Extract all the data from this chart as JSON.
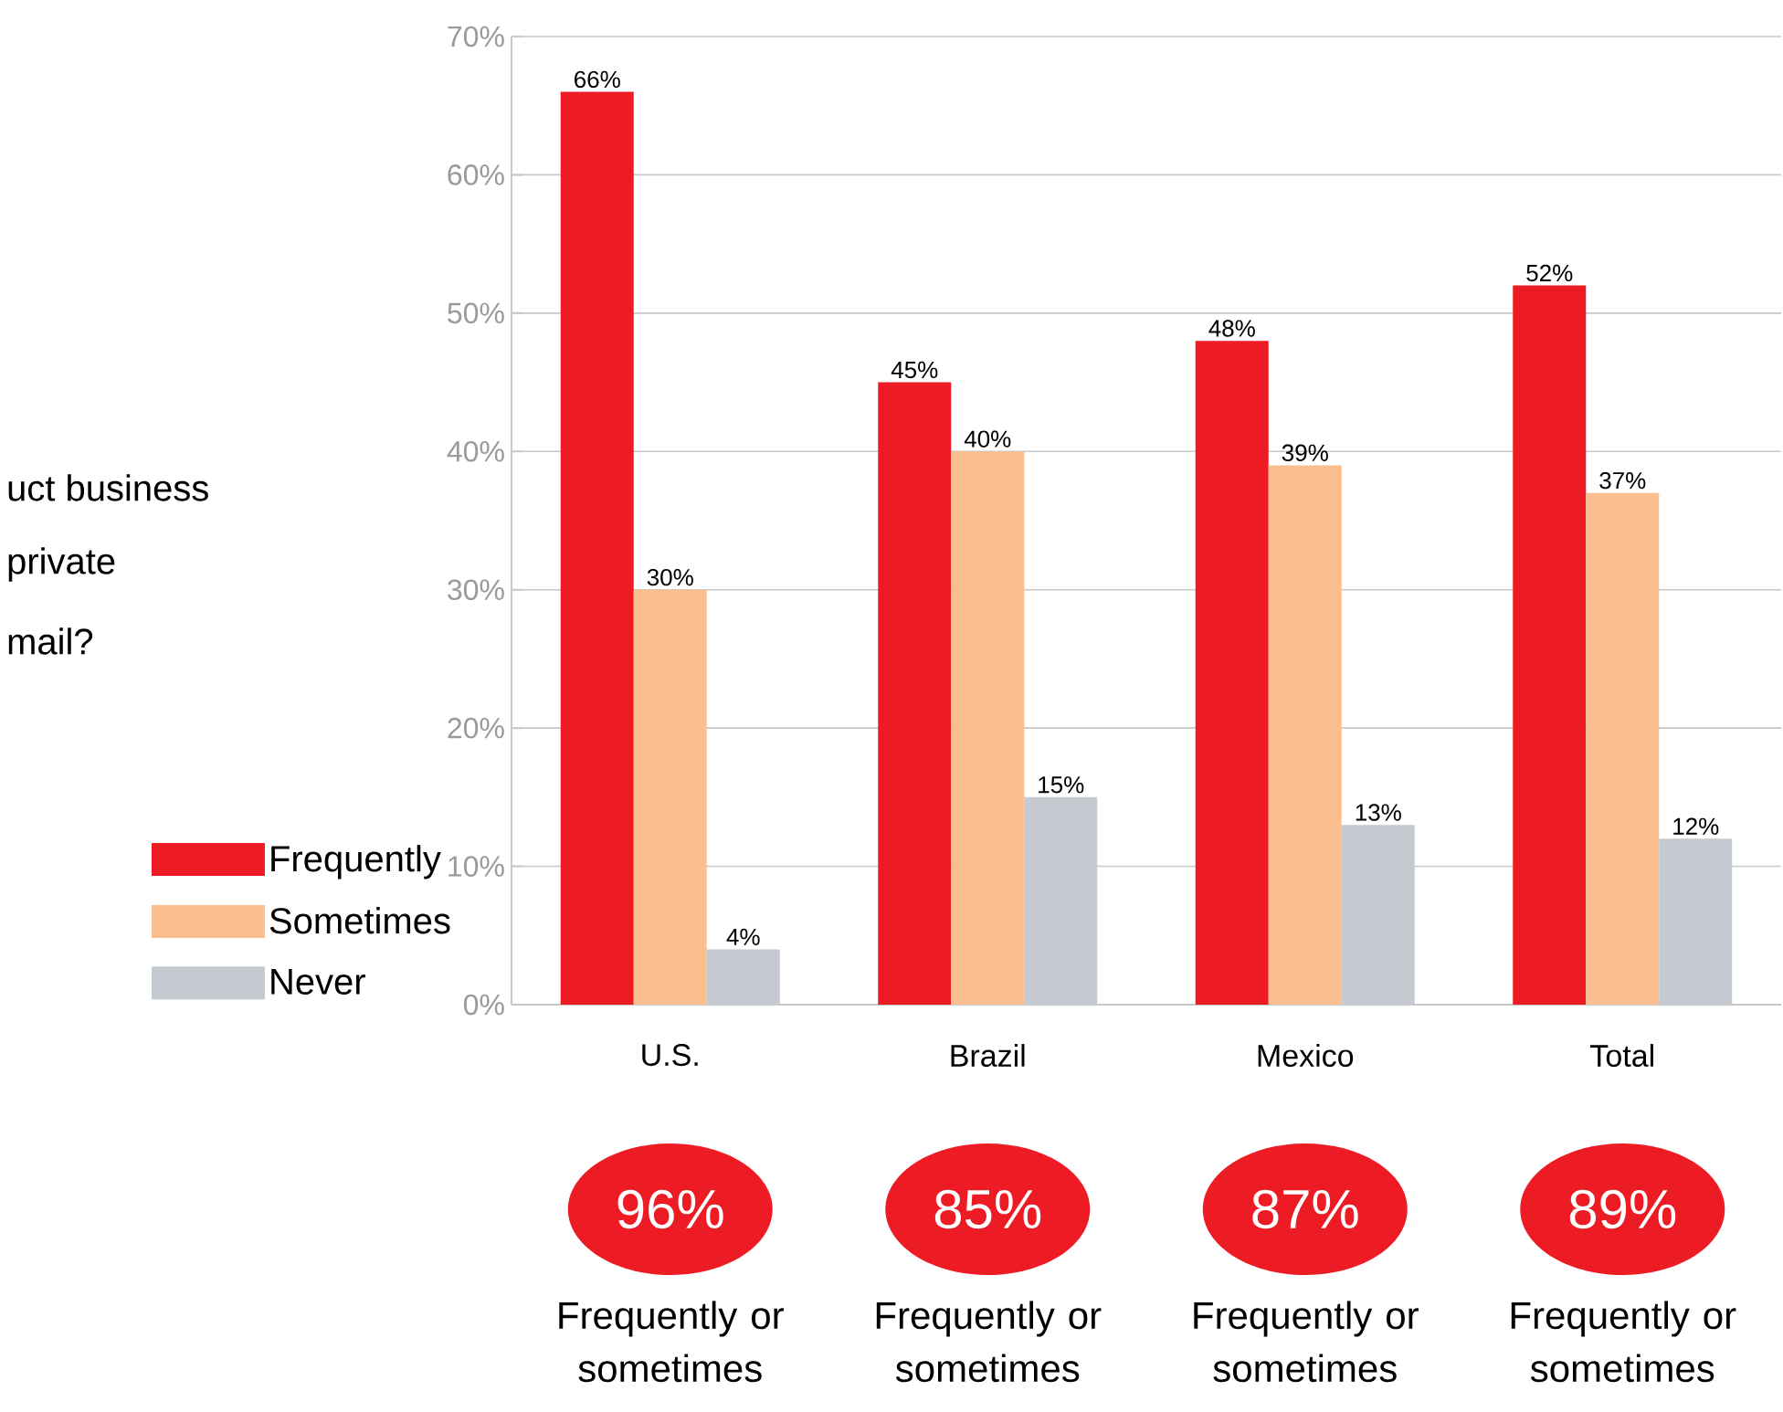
{
  "chart_data": {
    "type": "bar",
    "categories": [
      "U.S.",
      "Brazil",
      "Mexico",
      "Total"
    ],
    "series": [
      {
        "name": "Frequently",
        "color": "#ed1c24",
        "values": [
          66,
          45,
          48,
          52
        ],
        "value_labels": [
          "66%",
          "45%",
          "48%",
          "52%"
        ]
      },
      {
        "name": "Sometimes",
        "color": "#fbbf8f",
        "values": [
          30,
          40,
          39,
          37
        ],
        "value_labels": [
          "30%",
          "40%",
          "39%",
          "37%"
        ]
      },
      {
        "name": "Never",
        "color": "#c5cad0",
        "values": [
          4,
          15,
          13,
          12
        ],
        "value_labels": [
          "4%",
          "15%",
          "13%",
          "12%"
        ]
      }
    ],
    "ylim": [
      0,
      70
    ],
    "yticks": [
      {
        "value": 0,
        "label": "0%"
      },
      {
        "value": 10,
        "label": "10%"
      },
      {
        "value": 20,
        "label": "20%"
      },
      {
        "value": 30,
        "label": "30%"
      },
      {
        "value": 40,
        "label": "40%"
      },
      {
        "value": 50,
        "label": "50%"
      },
      {
        "value": 60,
        "label": "60%"
      },
      {
        "value": 70,
        "label": "70%"
      }
    ],
    "grid": "y",
    "legend": "left",
    "annotations": [
      "uct business",
      "private",
      "mail?",
      "96%",
      "Frequently or sometimes",
      "85%",
      "Frequently or sometimes",
      "87%",
      "Frequently or sometimes",
      "89%",
      "Frequently or sometimes"
    ]
  }
}
